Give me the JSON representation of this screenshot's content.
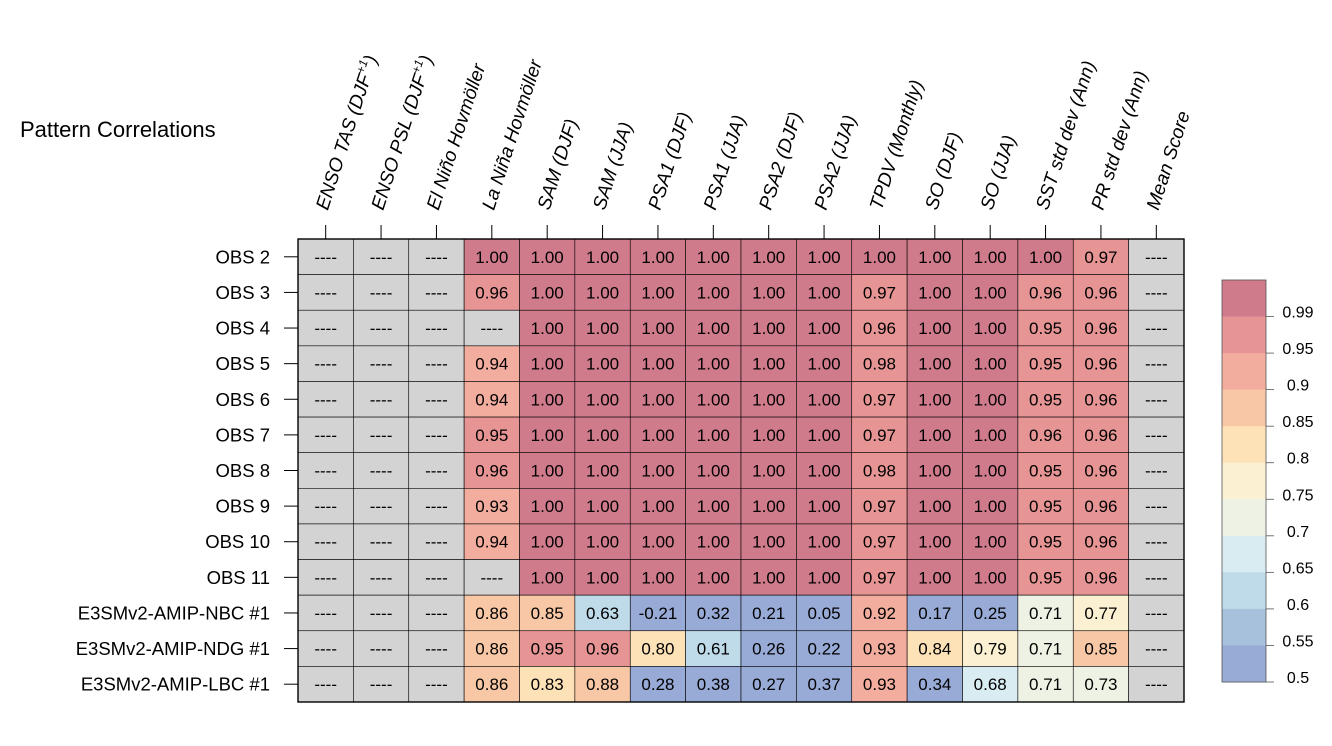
{
  "chart_data": {
    "type": "heatmap",
    "title": "Pattern Correlations",
    "columns": [
      {
        "base": "ENSO TAS (DJF",
        "sup": "+1",
        "tail": ")"
      },
      {
        "base": "ENSO PSL (DJF",
        "sup": "+1",
        "tail": ")"
      },
      {
        "base": "El Niño Hovmöller",
        "sup": "",
        "tail": ""
      },
      {
        "base": "La Niña Hovmöller",
        "sup": "",
        "tail": ""
      },
      {
        "base": "SAM (DJF)",
        "sup": "",
        "tail": ""
      },
      {
        "base": "SAM (JJA)",
        "sup": "",
        "tail": ""
      },
      {
        "base": "PSA1 (DJF)",
        "sup": "",
        "tail": ""
      },
      {
        "base": "PSA1 (JJA)",
        "sup": "",
        "tail": ""
      },
      {
        "base": "PSA2 (DJF)",
        "sup": "",
        "tail": ""
      },
      {
        "base": "PSA2 (JJA)",
        "sup": "",
        "tail": ""
      },
      {
        "base": "TPDV (Monthly)",
        "sup": "",
        "tail": ""
      },
      {
        "base": "SO (DJF)",
        "sup": "",
        "tail": ""
      },
      {
        "base": "SO (JJA)",
        "sup": "",
        "tail": ""
      },
      {
        "base": "SST std dev (Ann)",
        "sup": "",
        "tail": ""
      },
      {
        "base": "PR std dev (Ann)",
        "sup": "",
        "tail": ""
      },
      {
        "base": "Mean Score",
        "sup": "",
        "tail": ""
      }
    ],
    "rows": [
      "OBS 2",
      "OBS 3",
      "OBS 4",
      "OBS 5",
      "OBS 6",
      "OBS 7",
      "OBS 8",
      "OBS 9",
      "OBS 10",
      "OBS 11",
      "E3SMv2-AMIP-NBC #1",
      "E3SMv2-AMIP-NDG #1",
      "E3SMv2-AMIP-LBC #1"
    ],
    "missing_label": "----",
    "values": [
      [
        null,
        null,
        null,
        "1.00",
        "1.00",
        "1.00",
        "1.00",
        "1.00",
        "1.00",
        "1.00",
        "1.00",
        "1.00",
        "1.00",
        "1.00",
        "0.97",
        null
      ],
      [
        null,
        null,
        null,
        "0.96",
        "1.00",
        "1.00",
        "1.00",
        "1.00",
        "1.00",
        "1.00",
        "0.97",
        "1.00",
        "1.00",
        "0.96",
        "0.96",
        null
      ],
      [
        null,
        null,
        null,
        null,
        "1.00",
        "1.00",
        "1.00",
        "1.00",
        "1.00",
        "1.00",
        "0.96",
        "1.00",
        "1.00",
        "0.95",
        "0.96",
        null
      ],
      [
        null,
        null,
        null,
        "0.94",
        "1.00",
        "1.00",
        "1.00",
        "1.00",
        "1.00",
        "1.00",
        "0.98",
        "1.00",
        "1.00",
        "0.95",
        "0.96",
        null
      ],
      [
        null,
        null,
        null,
        "0.94",
        "1.00",
        "1.00",
        "1.00",
        "1.00",
        "1.00",
        "1.00",
        "0.97",
        "1.00",
        "1.00",
        "0.95",
        "0.96",
        null
      ],
      [
        null,
        null,
        null,
        "0.95",
        "1.00",
        "1.00",
        "1.00",
        "1.00",
        "1.00",
        "1.00",
        "0.97",
        "1.00",
        "1.00",
        "0.96",
        "0.96",
        null
      ],
      [
        null,
        null,
        null,
        "0.96",
        "1.00",
        "1.00",
        "1.00",
        "1.00",
        "1.00",
        "1.00",
        "0.98",
        "1.00",
        "1.00",
        "0.95",
        "0.96",
        null
      ],
      [
        null,
        null,
        null,
        "0.93",
        "1.00",
        "1.00",
        "1.00",
        "1.00",
        "1.00",
        "1.00",
        "0.97",
        "1.00",
        "1.00",
        "0.95",
        "0.96",
        null
      ],
      [
        null,
        null,
        null,
        "0.94",
        "1.00",
        "1.00",
        "1.00",
        "1.00",
        "1.00",
        "1.00",
        "0.97",
        "1.00",
        "1.00",
        "0.95",
        "0.96",
        null
      ],
      [
        null,
        null,
        null,
        null,
        "1.00",
        "1.00",
        "1.00",
        "1.00",
        "1.00",
        "1.00",
        "0.97",
        "1.00",
        "1.00",
        "0.95",
        "0.96",
        null
      ],
      [
        null,
        null,
        null,
        "0.86",
        "0.85",
        "0.63",
        "-0.21",
        "0.32",
        "0.21",
        "0.05",
        "0.92",
        "0.17",
        "0.25",
        "0.71",
        "0.77",
        null
      ],
      [
        null,
        null,
        null,
        "0.86",
        "0.95",
        "0.96",
        "0.80",
        "0.61",
        "0.26",
        "0.22",
        "0.93",
        "0.84",
        "0.79",
        "0.71",
        "0.85",
        null
      ],
      [
        null,
        null,
        null,
        "0.86",
        "0.83",
        "0.88",
        "0.28",
        "0.38",
        "0.27",
        "0.37",
        "0.93",
        "0.34",
        "0.68",
        "0.71",
        "0.73",
        null
      ]
    ],
    "colorbar": {
      "levels": [
        "0.99",
        "0.95",
        "0.9",
        "0.85",
        "0.8",
        "0.75",
        "0.7",
        "0.65",
        "0.6",
        "0.55",
        "0.5"
      ],
      "colors": [
        "#d07b8c",
        "#e69494",
        "#f2ad9e",
        "#f8c8a6",
        "#fde2b8",
        "#fbf1d2",
        "#eef2e4",
        "#d9ecf2",
        "#bfdbea",
        "#a7c0dc",
        "#98aad6"
      ],
      "missing_color": "#d3d3d3"
    }
  }
}
